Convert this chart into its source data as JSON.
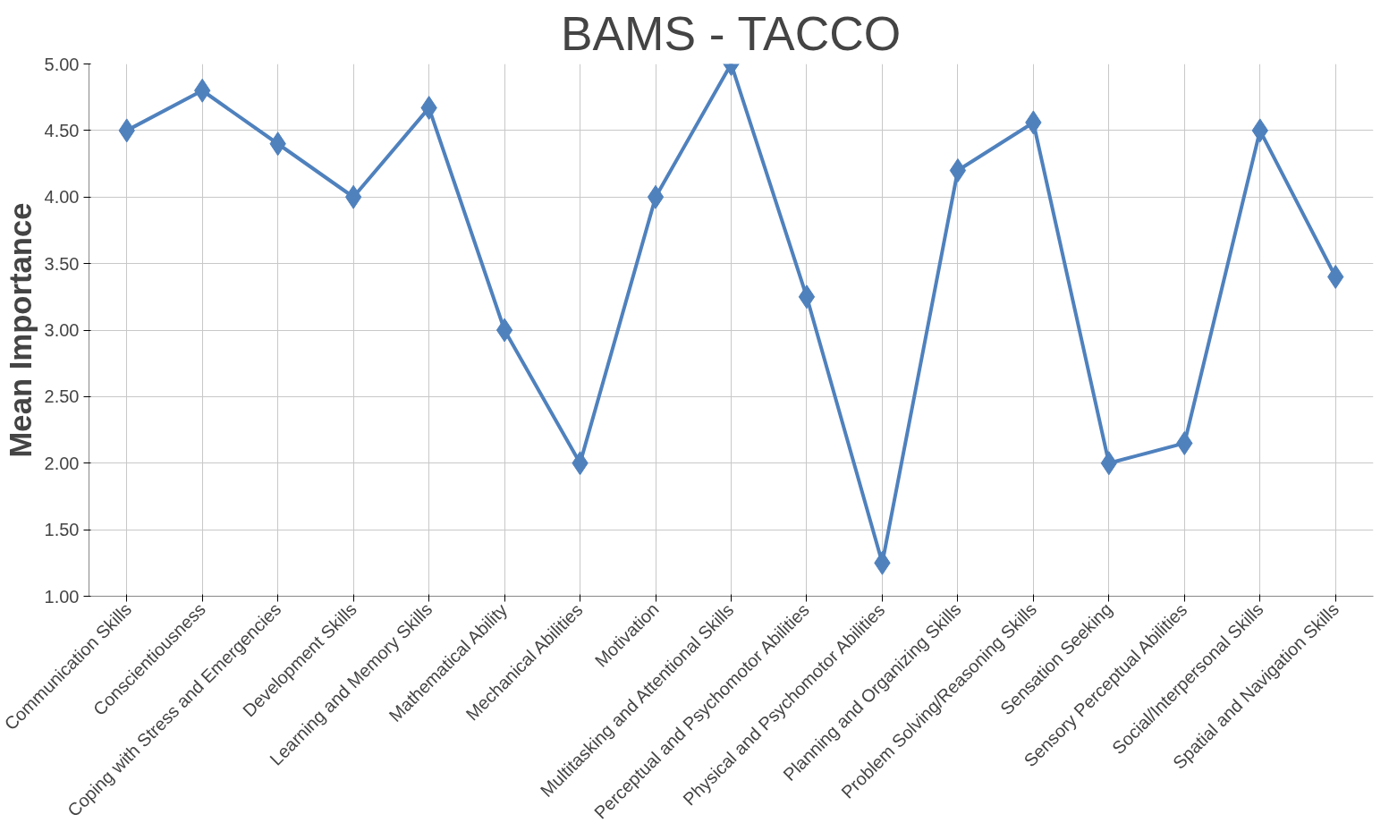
{
  "chart_data": {
    "type": "line",
    "title": "BAMS - TACCO",
    "ylabel": "Mean Importance",
    "categories": [
      "Communication Skills",
      "Conscientiousness",
      "Coping with Stress and Emergencies",
      "Development Skills",
      "Learning and Memory Skills",
      "Mathematical Ability",
      "Mechanical Abilities",
      "Motivation",
      "Multitasking and Attentional Skills",
      "Perceptual and Psychomotor Abilities",
      "Physical and Psychomotor Abilities",
      "Planning and Organizing Skills",
      "Problem Solving/Reasoning Skills",
      "Sensation Seeking",
      "Sensory Perceptual Abilities",
      "Social/Interpersonal Skills",
      "Spatial and Navigation Skills"
    ],
    "series": [
      {
        "color": "#4f81bd",
        "values": [
          4.5,
          4.8,
          4.4,
          4.0,
          4.67,
          3.0,
          2.0,
          4.0,
          5.0,
          3.25,
          1.25,
          4.2,
          4.56,
          2.0,
          2.15,
          4.5,
          3.4
        ]
      }
    ],
    "ylim": [
      1,
      5
    ],
    "yticks": [
      {
        "value": 1,
        "label": "1.00"
      },
      {
        "value": 1.5,
        "label": "1.50"
      },
      {
        "value": 2,
        "label": "2.00"
      },
      {
        "value": 2.5,
        "label": "2.50"
      },
      {
        "value": 3,
        "label": "3.00"
      },
      {
        "value": 3.5,
        "label": "3.50"
      },
      {
        "value": 4,
        "label": "4.00"
      },
      {
        "value": 4.5,
        "label": "4.50"
      },
      {
        "value": 5,
        "label": "5.00"
      }
    ],
    "grid": true,
    "marker": "diamond",
    "line_style": "solid"
  }
}
